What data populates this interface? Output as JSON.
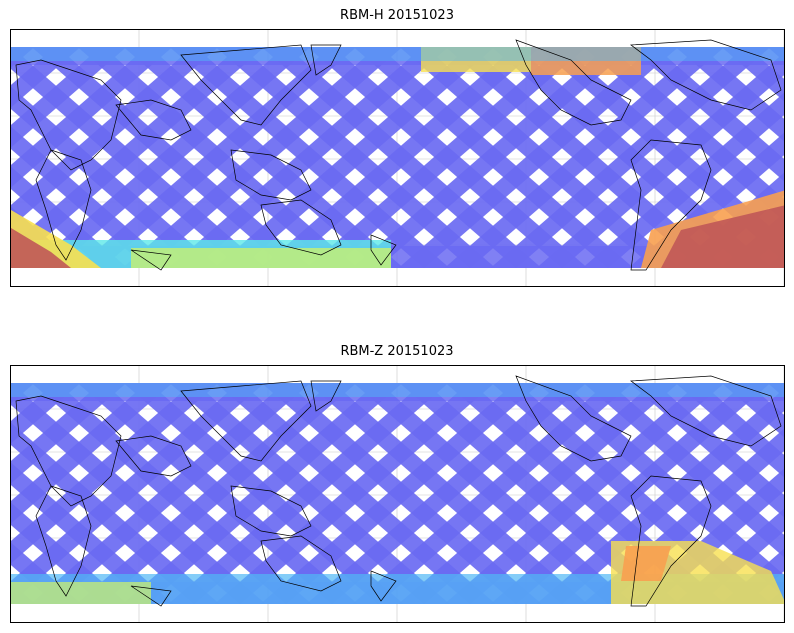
{
  "panels": [
    {
      "title": "RBM-H 20151023",
      "swath_color": "#6a6af2",
      "hot_zones": [
        "south-west",
        "south-atlantic",
        "north-pacific"
      ]
    },
    {
      "title": "RBM-Z 20151023",
      "swath_color": "#6a6af2",
      "hot_zones": [
        "south-america-south",
        "south-margin"
      ]
    }
  ],
  "colormap": {
    "low": "#5a5af0",
    "mid_low": "#50b8f5",
    "mid": "#5ce8e8",
    "mid_high": "#c8f070",
    "high": "#f8e050",
    "higher": "#f8a050",
    "max": "#c05858"
  },
  "gridlines": true,
  "coastline_color": "#000000"
}
